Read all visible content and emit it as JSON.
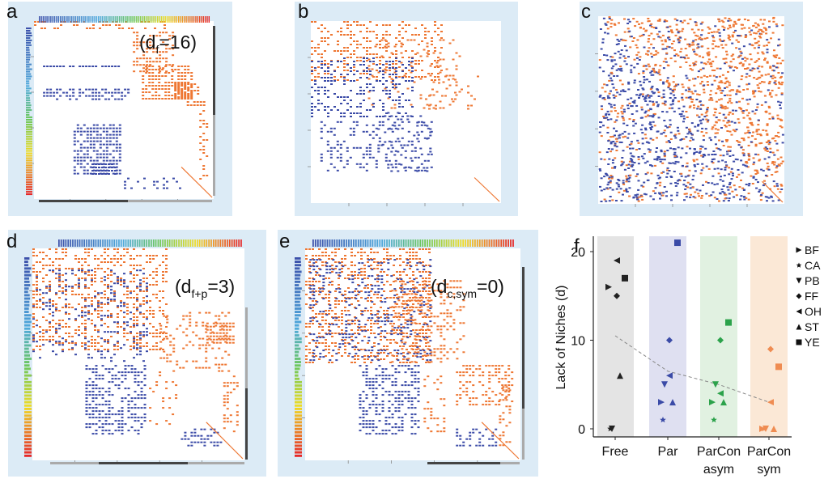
{
  "panels": {
    "a": {
      "label": "a",
      "annotation_main": "(d",
      "annotation_sub": "f",
      "annotation_tail": "=16)"
    },
    "b": {
      "label": "b"
    },
    "c": {
      "label": "c"
    },
    "d": {
      "label": "d",
      "annotation_main": "(d",
      "annotation_sub": "f+p",
      "annotation_tail": "=3)"
    },
    "e": {
      "label": "e",
      "annotation_main": "(d",
      "annotation_sub": "c,sym",
      "annotation_tail": "=0)"
    },
    "f": {
      "label": "f"
    }
  },
  "colors": {
    "orange": "#ee7733",
    "blue": "#3b4ba7",
    "panel_bg": "#dcebf6",
    "free_bg": "#e4e4e4",
    "par_bg": "#dfe0f1",
    "parcon_asym_bg": "#e1f1e1",
    "parcon_sym_bg": "#fbe8d6",
    "black": "#222222",
    "gray": "#999999"
  },
  "chart_data": {
    "type": "scatter",
    "ylabel": "Lack of Niches (d)",
    "yticks": [
      0,
      10,
      20
    ],
    "categories": [
      "Free",
      "Par",
      "ParCon asym",
      "ParCon sym"
    ],
    "category_lines": [
      [
        "Free"
      ],
      [
        "Par"
      ],
      [
        "ParCon",
        "asym"
      ],
      [
        "ParCon",
        "sym"
      ]
    ],
    "category_colors": [
      "#222222",
      "#3b4ba7",
      "#2ca24b",
      "#ef8c52"
    ],
    "legend": [
      "BF",
      "CA",
      "PB",
      "FF",
      "OH",
      "ST",
      "YE"
    ],
    "legend_markers": [
      "tri-right",
      "star",
      "tri-down",
      "diamond",
      "tri-left",
      "tri-up",
      "square"
    ],
    "series": [
      {
        "name": "BF",
        "values": [
          16,
          3,
          3,
          0
        ]
      },
      {
        "name": "CA",
        "values": [
          0,
          1,
          1,
          0
        ]
      },
      {
        "name": "PB",
        "values": [
          0,
          5,
          5,
          0
        ]
      },
      {
        "name": "FF",
        "values": [
          15,
          10,
          10,
          9
        ]
      },
      {
        "name": "OH",
        "values": [
          19,
          6,
          4,
          3
        ]
      },
      {
        "name": "ST",
        "values": [
          6,
          3,
          3,
          0
        ]
      },
      {
        "name": "YE",
        "values": [
          17,
          21,
          12,
          7
        ]
      }
    ],
    "trend": [
      10.5,
      6.5,
      5,
      3
    ]
  }
}
